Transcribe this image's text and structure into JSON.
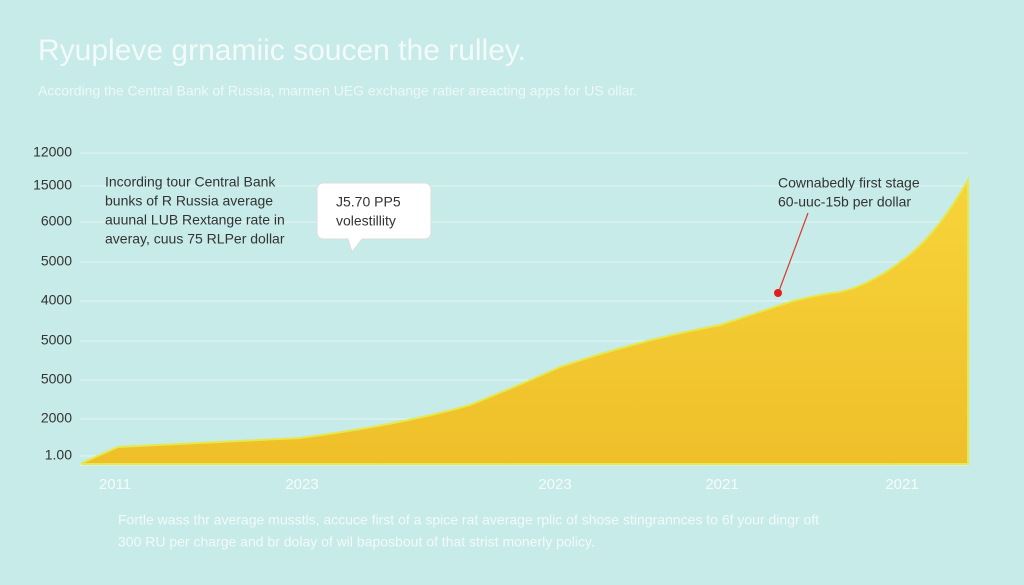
{
  "chart_data": {
    "type": "area",
    "title": "Ryupleve grnamiic soucen the rulley.",
    "subtitle": "According the Central Bank of Russia, marmen UEG exchange ratier areacting apps for US ollar.",
    "y_axis_labels": [
      "12000",
      "15000",
      "6000",
      "5000",
      "4000",
      "5000",
      "5000",
      "2000",
      "1.00"
    ],
    "categories": [
      "2011",
      "2023",
      "2023",
      "2021",
      "2021"
    ],
    "annotations": [
      {
        "lines": [
          "Incording tour Central Bank",
          "bunks of R Russia average",
          "auunal LUB Rextange rate in",
          "averay, cuus 75 RLPer dollar"
        ]
      },
      {
        "lines": [
          "J5.70 PP5",
          "volestillity"
        ]
      },
      {
        "lines": [
          "Cownabedly first stage",
          "60-uuc-15b per dollar"
        ]
      }
    ],
    "footnote": [
      "Fortle wass thr average musstls, accuce first of a spice rat average rplic of shose stingrannces to 6f your dingr oft",
      "300 RU per charge and br dolay of wil baposbout of that strist monerly policy."
    ],
    "color": "#f5cb30"
  }
}
